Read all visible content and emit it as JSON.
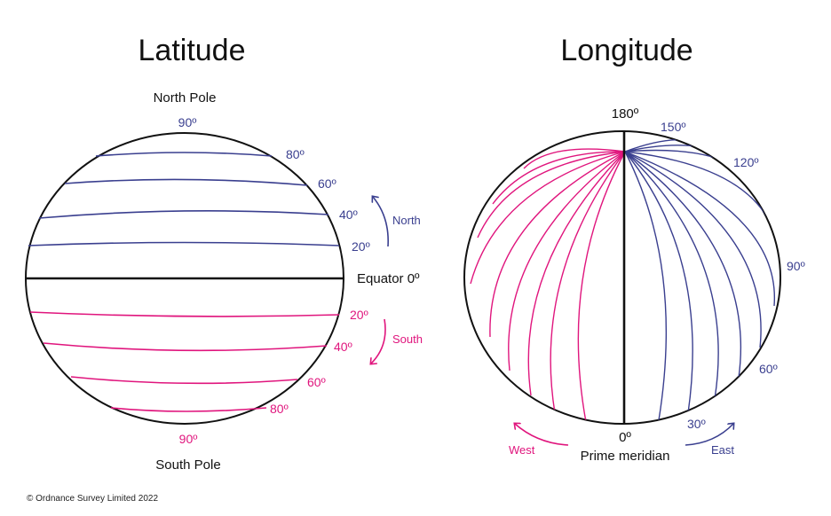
{
  "colors": {
    "north": "#3a3f8f",
    "south": "#e0157d",
    "outline": "#111111"
  },
  "latitude": {
    "title": "Latitude",
    "north_pole": "North Pole",
    "south_pole": "South Pole",
    "equator": "Equator 0º",
    "north_top": "90º",
    "south_bottom": "90º",
    "north_labels": [
      "80º",
      "60º",
      "40º",
      "20º"
    ],
    "south_labels": [
      "20º",
      "40º",
      "60º",
      "80º"
    ],
    "north_arrow": "North",
    "south_arrow": "South"
  },
  "longitude": {
    "title": "Longitude",
    "top": "180º",
    "east_labels": [
      "150º",
      "120º",
      "90º",
      "60º",
      "30º"
    ],
    "prime_degree": "0º",
    "prime_meridian": "Prime meridian",
    "west_arrow": "West",
    "east_arrow": "East"
  },
  "copyright": "© Ordnance Survey Limited 2022"
}
